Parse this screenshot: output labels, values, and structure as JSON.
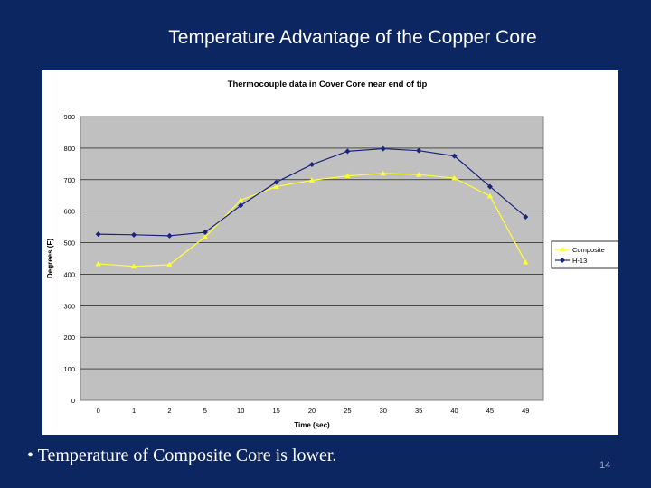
{
  "slide": {
    "title": "Temperature Advantage of the Copper Core",
    "bullet": "• Temperature of Composite Core is lower.",
    "page_number": "14"
  },
  "chart_data": {
    "type": "line",
    "title": "Thermocouple data in Cover Core near end of tip",
    "xlabel": "Time (sec)",
    "ylabel": "Degrees (F)",
    "categories": [
      "0",
      "1",
      "2",
      "5",
      "10",
      "15",
      "20",
      "25",
      "30",
      "35",
      "40",
      "45",
      "49"
    ],
    "ylim": [
      0,
      900
    ],
    "yticks": [
      0,
      100,
      200,
      300,
      400,
      500,
      600,
      700,
      800,
      900
    ],
    "grid": true,
    "legend_position": "right",
    "plot_background": "#c0c0c0",
    "series": [
      {
        "name": "Composite",
        "color": "#ffff33",
        "marker": "triangle",
        "values": [
          433,
          425,
          430,
          518,
          635,
          678,
          698,
          712,
          720,
          716,
          705,
          648,
          438
        ]
      },
      {
        "name": "H-13",
        "color": "#1a237e",
        "marker": "diamond",
        "values": [
          527,
          525,
          522,
          533,
          618,
          692,
          748,
          790,
          798,
          792,
          775,
          678,
          582
        ]
      }
    ]
  }
}
